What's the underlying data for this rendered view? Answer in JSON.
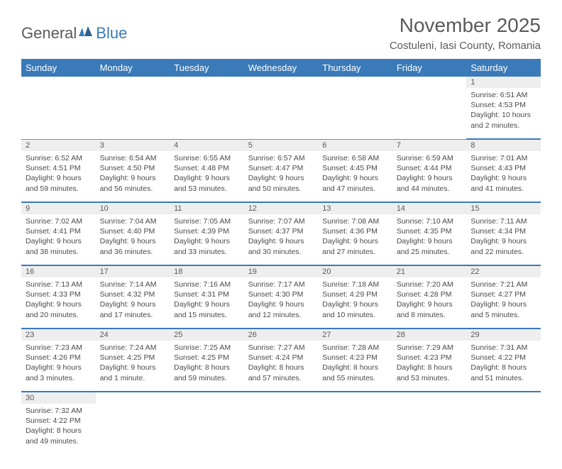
{
  "logo": {
    "text1": "General",
    "text2": "Blue"
  },
  "title": "November 2025",
  "location": "Costuleni, Iasi County, Romania",
  "colors": {
    "header_bg": "#3a7ab8",
    "header_fg": "#ffffff",
    "daynum_bg": "#eeeeee",
    "border": "#3a7ab8",
    "text": "#4a4a4a"
  },
  "weekdays": [
    "Sunday",
    "Monday",
    "Tuesday",
    "Wednesday",
    "Thursday",
    "Friday",
    "Saturday"
  ],
  "weeks": [
    [
      null,
      null,
      null,
      null,
      null,
      null,
      {
        "n": "1",
        "sr": "Sunrise: 6:51 AM",
        "ss": "Sunset: 4:53 PM",
        "dl1": "Daylight: 10 hours",
        "dl2": "and 2 minutes."
      }
    ],
    [
      {
        "n": "2",
        "sr": "Sunrise: 6:52 AM",
        "ss": "Sunset: 4:51 PM",
        "dl1": "Daylight: 9 hours",
        "dl2": "and 59 minutes."
      },
      {
        "n": "3",
        "sr": "Sunrise: 6:54 AM",
        "ss": "Sunset: 4:50 PM",
        "dl1": "Daylight: 9 hours",
        "dl2": "and 56 minutes."
      },
      {
        "n": "4",
        "sr": "Sunrise: 6:55 AM",
        "ss": "Sunset: 4:48 PM",
        "dl1": "Daylight: 9 hours",
        "dl2": "and 53 minutes."
      },
      {
        "n": "5",
        "sr": "Sunrise: 6:57 AM",
        "ss": "Sunset: 4:47 PM",
        "dl1": "Daylight: 9 hours",
        "dl2": "and 50 minutes."
      },
      {
        "n": "6",
        "sr": "Sunrise: 6:58 AM",
        "ss": "Sunset: 4:45 PM",
        "dl1": "Daylight: 9 hours",
        "dl2": "and 47 minutes."
      },
      {
        "n": "7",
        "sr": "Sunrise: 6:59 AM",
        "ss": "Sunset: 4:44 PM",
        "dl1": "Daylight: 9 hours",
        "dl2": "and 44 minutes."
      },
      {
        "n": "8",
        "sr": "Sunrise: 7:01 AM",
        "ss": "Sunset: 4:43 PM",
        "dl1": "Daylight: 9 hours",
        "dl2": "and 41 minutes."
      }
    ],
    [
      {
        "n": "9",
        "sr": "Sunrise: 7:02 AM",
        "ss": "Sunset: 4:41 PM",
        "dl1": "Daylight: 9 hours",
        "dl2": "and 38 minutes."
      },
      {
        "n": "10",
        "sr": "Sunrise: 7:04 AM",
        "ss": "Sunset: 4:40 PM",
        "dl1": "Daylight: 9 hours",
        "dl2": "and 36 minutes."
      },
      {
        "n": "11",
        "sr": "Sunrise: 7:05 AM",
        "ss": "Sunset: 4:39 PM",
        "dl1": "Daylight: 9 hours",
        "dl2": "and 33 minutes."
      },
      {
        "n": "12",
        "sr": "Sunrise: 7:07 AM",
        "ss": "Sunset: 4:37 PM",
        "dl1": "Daylight: 9 hours",
        "dl2": "and 30 minutes."
      },
      {
        "n": "13",
        "sr": "Sunrise: 7:08 AM",
        "ss": "Sunset: 4:36 PM",
        "dl1": "Daylight: 9 hours",
        "dl2": "and 27 minutes."
      },
      {
        "n": "14",
        "sr": "Sunrise: 7:10 AM",
        "ss": "Sunset: 4:35 PM",
        "dl1": "Daylight: 9 hours",
        "dl2": "and 25 minutes."
      },
      {
        "n": "15",
        "sr": "Sunrise: 7:11 AM",
        "ss": "Sunset: 4:34 PM",
        "dl1": "Daylight: 9 hours",
        "dl2": "and 22 minutes."
      }
    ],
    [
      {
        "n": "16",
        "sr": "Sunrise: 7:13 AM",
        "ss": "Sunset: 4:33 PM",
        "dl1": "Daylight: 9 hours",
        "dl2": "and 20 minutes."
      },
      {
        "n": "17",
        "sr": "Sunrise: 7:14 AM",
        "ss": "Sunset: 4:32 PM",
        "dl1": "Daylight: 9 hours",
        "dl2": "and 17 minutes."
      },
      {
        "n": "18",
        "sr": "Sunrise: 7:16 AM",
        "ss": "Sunset: 4:31 PM",
        "dl1": "Daylight: 9 hours",
        "dl2": "and 15 minutes."
      },
      {
        "n": "19",
        "sr": "Sunrise: 7:17 AM",
        "ss": "Sunset: 4:30 PM",
        "dl1": "Daylight: 9 hours",
        "dl2": "and 12 minutes."
      },
      {
        "n": "20",
        "sr": "Sunrise: 7:18 AM",
        "ss": "Sunset: 4:29 PM",
        "dl1": "Daylight: 9 hours",
        "dl2": "and 10 minutes."
      },
      {
        "n": "21",
        "sr": "Sunrise: 7:20 AM",
        "ss": "Sunset: 4:28 PM",
        "dl1": "Daylight: 9 hours",
        "dl2": "and 8 minutes."
      },
      {
        "n": "22",
        "sr": "Sunrise: 7:21 AM",
        "ss": "Sunset: 4:27 PM",
        "dl1": "Daylight: 9 hours",
        "dl2": "and 5 minutes."
      }
    ],
    [
      {
        "n": "23",
        "sr": "Sunrise: 7:23 AM",
        "ss": "Sunset: 4:26 PM",
        "dl1": "Daylight: 9 hours",
        "dl2": "and 3 minutes."
      },
      {
        "n": "24",
        "sr": "Sunrise: 7:24 AM",
        "ss": "Sunset: 4:25 PM",
        "dl1": "Daylight: 9 hours",
        "dl2": "and 1 minute."
      },
      {
        "n": "25",
        "sr": "Sunrise: 7:25 AM",
        "ss": "Sunset: 4:25 PM",
        "dl1": "Daylight: 8 hours",
        "dl2": "and 59 minutes."
      },
      {
        "n": "26",
        "sr": "Sunrise: 7:27 AM",
        "ss": "Sunset: 4:24 PM",
        "dl1": "Daylight: 8 hours",
        "dl2": "and 57 minutes."
      },
      {
        "n": "27",
        "sr": "Sunrise: 7:28 AM",
        "ss": "Sunset: 4:23 PM",
        "dl1": "Daylight: 8 hours",
        "dl2": "and 55 minutes."
      },
      {
        "n": "28",
        "sr": "Sunrise: 7:29 AM",
        "ss": "Sunset: 4:23 PM",
        "dl1": "Daylight: 8 hours",
        "dl2": "and 53 minutes."
      },
      {
        "n": "29",
        "sr": "Sunrise: 7:31 AM",
        "ss": "Sunset: 4:22 PM",
        "dl1": "Daylight: 8 hours",
        "dl2": "and 51 minutes."
      }
    ],
    [
      {
        "n": "30",
        "sr": "Sunrise: 7:32 AM",
        "ss": "Sunset: 4:22 PM",
        "dl1": "Daylight: 8 hours",
        "dl2": "and 49 minutes."
      },
      null,
      null,
      null,
      null,
      null,
      null
    ]
  ]
}
